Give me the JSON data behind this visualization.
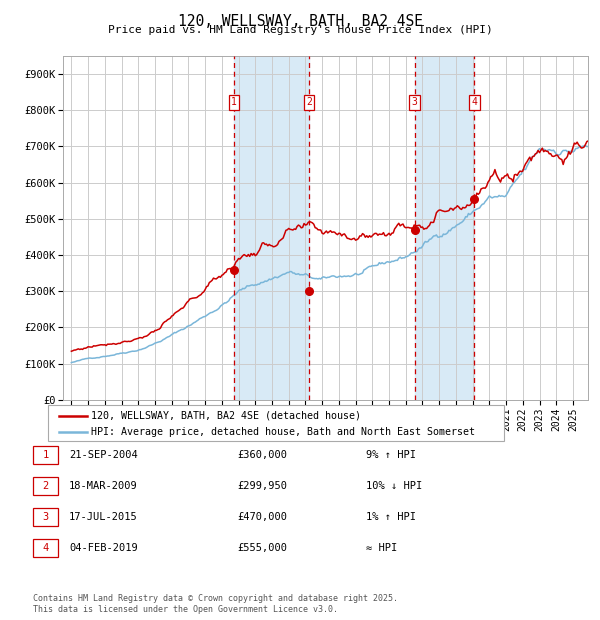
{
  "title": "120, WELLSWAY, BATH, BA2 4SE",
  "subtitle": "Price paid vs. HM Land Registry's House Price Index (HPI)",
  "ylim": [
    0,
    950000
  ],
  "yticks": [
    0,
    100000,
    200000,
    300000,
    400000,
    500000,
    600000,
    700000,
    800000,
    900000
  ],
  "ytick_labels": [
    "£0",
    "£100K",
    "£200K",
    "£300K",
    "£400K",
    "£500K",
    "£600K",
    "£700K",
    "£800K",
    "£900K"
  ],
  "hpi_color": "#7ab6d9",
  "price_color": "#cc0000",
  "grid_color": "#cccccc",
  "bg_color": "#ffffff",
  "vline_color": "#cc0000",
  "shade_color": "#d8eaf6",
  "transactions": [
    {
      "num": 1,
      "date_str": "21-SEP-2004",
      "date_x": 2004.72,
      "price": 360000,
      "hpi_rel": "9% ↑ HPI"
    },
    {
      "num": 2,
      "date_str": "18-MAR-2009",
      "date_x": 2009.21,
      "price": 299950,
      "hpi_rel": "10% ↓ HPI"
    },
    {
      "num": 3,
      "date_str": "17-JUL-2015",
      "date_x": 2015.54,
      "price": 470000,
      "hpi_rel": "1% ↑ HPI"
    },
    {
      "num": 4,
      "date_str": "04-FEB-2019",
      "date_x": 2019.09,
      "price": 555000,
      "hpi_rel": "≈ HPI"
    }
  ],
  "legend_line1": "120, WELLSWAY, BATH, BA2 4SE (detached house)",
  "legend_line2": "HPI: Average price, detached house, Bath and North East Somerset",
  "footer1": "Contains HM Land Registry data © Crown copyright and database right 2025.",
  "footer2": "This data is licensed under the Open Government Licence v3.0.",
  "xlim_left": 1994.5,
  "xlim_right": 2025.9
}
